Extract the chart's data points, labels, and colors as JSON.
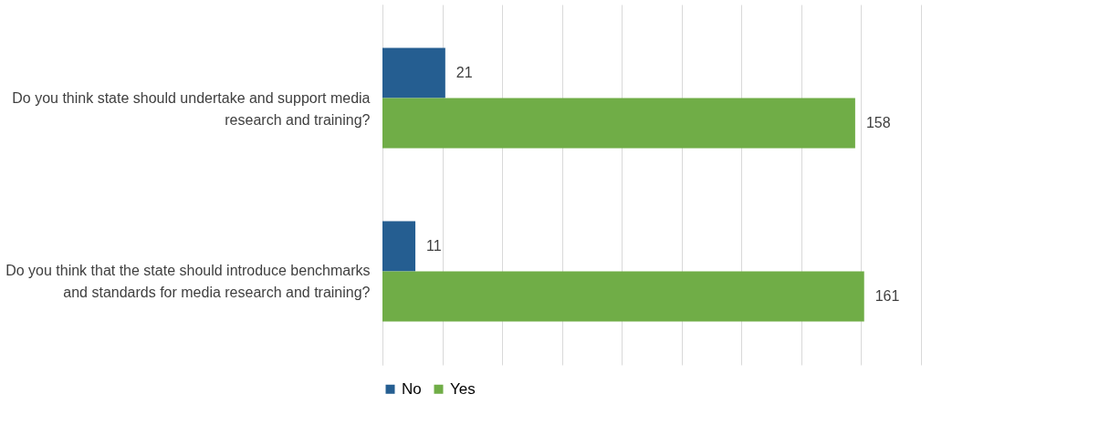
{
  "chart_data": {
    "type": "bar",
    "orientation": "horizontal",
    "categories": [
      "Do you think state should undertake and support media research and training?",
      "Do you think that the state should introduce benchmarks and standards for media research and training?"
    ],
    "series": [
      {
        "name": "No",
        "color": "#255e91",
        "values": [
          21,
          11
        ]
      },
      {
        "name": "Yes",
        "color": "#70ad47",
        "values": [
          158,
          161
        ]
      }
    ],
    "xlim": [
      0,
      180
    ],
    "xticks": [
      {
        "value": 0,
        "label": null
      },
      {
        "value": 20,
        "label": null
      },
      {
        "value": 40,
        "label": null
      },
      {
        "value": 60,
        "label": null
      },
      {
        "value": 80,
        "label": null
      },
      {
        "value": 100,
        "label": null
      },
      {
        "value": 120,
        "label": null
      },
      {
        "value": 140,
        "label": null
      },
      {
        "value": 160,
        "label": null
      },
      {
        "value": 180,
        "label": null
      }
    ],
    "grid": "x",
    "legend": "bottom",
    "data_labels": true,
    "tick_labels": "y"
  }
}
